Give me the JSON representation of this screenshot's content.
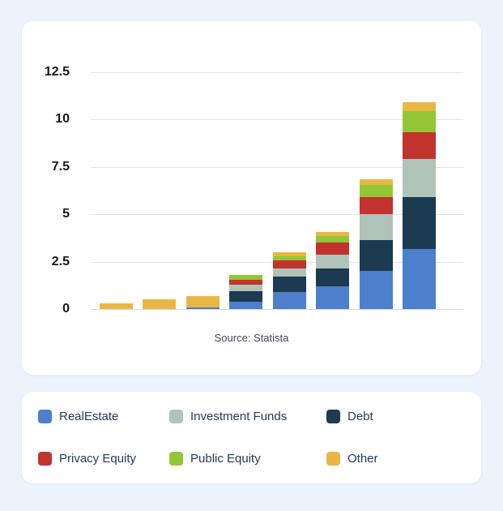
{
  "colors": {
    "background": "#edf3fc",
    "card": "#ffffff",
    "gridline": "#e3e3e3",
    "tick_text": "#181818",
    "source_text": "#3c4858",
    "legend_text": "#1f3b57"
  },
  "chart": {
    "source_text": "Source: Statista"
  },
  "chart_data": {
    "type": "bar",
    "stacked": true,
    "title": "",
    "xlabel": "",
    "ylabel": "",
    "categories": [
      "",
      "",
      "",
      "",
      "",
      "",
      "",
      ""
    ],
    "yticks": [
      0,
      2.5,
      5,
      7.5,
      10,
      12.5
    ],
    "ylim": [
      0,
      12.5
    ],
    "grid": true,
    "legend_position": "bottom-card",
    "stack_order_note": "series listed bottom-to-top of stack",
    "series": [
      {
        "name": "RealEstate",
        "color": "#4d80cc",
        "values": [
          0,
          0,
          0.1,
          0.4,
          0.9,
          1.2,
          2.0,
          3.15
        ]
      },
      {
        "name": "Debt",
        "color": "#1c3a50",
        "values": [
          0,
          0,
          0,
          0.55,
          0.8,
          0.95,
          1.65,
          2.75
        ]
      },
      {
        "name": "Investment Funds",
        "color": "#afc3b8",
        "values": [
          0,
          0,
          0,
          0.35,
          0.45,
          0.7,
          1.35,
          2.0
        ]
      },
      {
        "name": "Privacy Equity",
        "color": "#c2332d",
        "values": [
          0,
          0,
          0,
          0.25,
          0.4,
          0.65,
          0.9,
          1.45
        ]
      },
      {
        "name": "Public Equity",
        "color": "#93c636",
        "values": [
          0,
          0,
          0,
          0.25,
          0.25,
          0.35,
          0.65,
          1.1
        ]
      },
      {
        "name": "Other",
        "color": "#eab744",
        "values": [
          0.3,
          0.5,
          0.6,
          0,
          0.2,
          0.2,
          0.3,
          0.45
        ]
      }
    ]
  },
  "legend": {
    "items": [
      {
        "label": "RealEstate",
        "color": "#4d80cc"
      },
      {
        "label": "Investment Funds",
        "color": "#afc3b8"
      },
      {
        "label": "Debt",
        "color": "#1c3a50"
      },
      {
        "label": "Privacy Equity",
        "color": "#c2332d"
      },
      {
        "label": "Public Equity",
        "color": "#93c636"
      },
      {
        "label": "Other",
        "color": "#eab744"
      }
    ]
  }
}
